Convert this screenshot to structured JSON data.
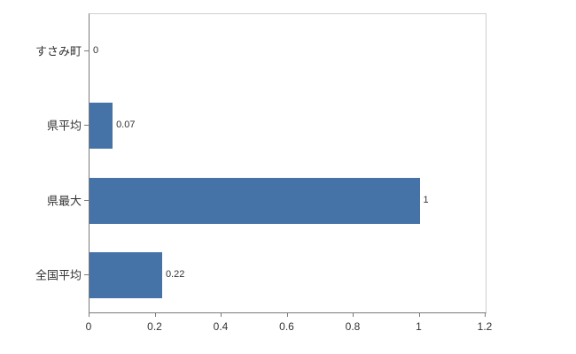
{
  "chart_data": {
    "type": "bar",
    "orientation": "horizontal",
    "title": "",
    "xlabel": "",
    "ylabel": "",
    "categories": [
      "すさみ町",
      "県平均",
      "県最大",
      "全国平均"
    ],
    "values": [
      0,
      0.07,
      1,
      0.22
    ],
    "value_labels": [
      "0",
      "0.07",
      "1",
      "0.22"
    ],
    "x_ticks": [
      0,
      0.2,
      0.4,
      0.6,
      0.8,
      1,
      1.2
    ],
    "x_tick_labels": [
      "0",
      "0.2",
      "0.4",
      "0.6",
      "0.8",
      "1",
      "1.2"
    ],
    "xlim": [
      0,
      1.2
    ],
    "grid": false,
    "legend": false,
    "bar_color": "#4572a7",
    "axis_color": "#7a7a7a",
    "plot_border_color": "#cfcfcf",
    "text_color": "#333333",
    "background_color": "#ffffff"
  }
}
